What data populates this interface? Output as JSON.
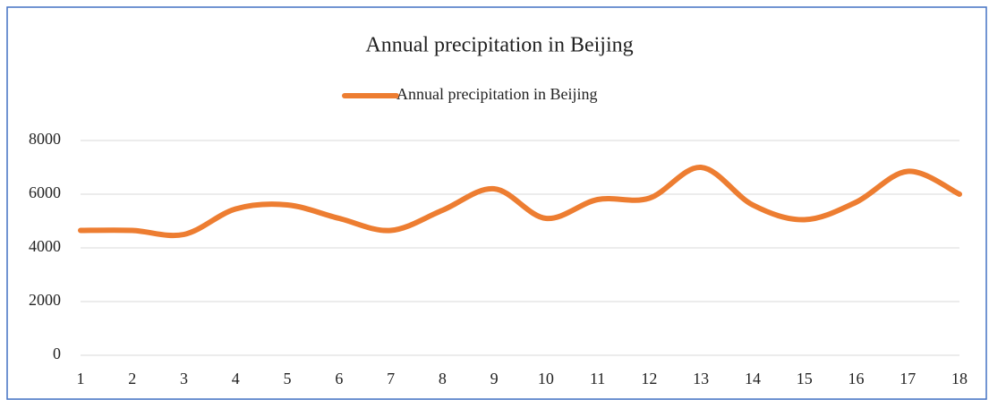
{
  "chart_data": {
    "type": "line",
    "title": "Annual precipitation in Beijing",
    "categories": [
      "1",
      "2",
      "3",
      "4",
      "5",
      "6",
      "7",
      "8",
      "9",
      "10",
      "11",
      "12",
      "13",
      "14",
      "15",
      "16",
      "17",
      "18"
    ],
    "series": [
      {
        "name": "Annual precipitation in Beijing",
        "color": "#ed7d31",
        "values": [
          4650,
          4650,
          4500,
          5450,
          5600,
          5100,
          4650,
          5400,
          6200,
          5100,
          5800,
          5850,
          7000,
          5600,
          5050,
          5700,
          6850,
          6000
        ]
      }
    ],
    "ylim": [
      0,
      8000
    ],
    "yticks": [
      0,
      2000,
      4000,
      6000,
      8000
    ],
    "grid": true,
    "smooth": true,
    "legend": "top"
  }
}
